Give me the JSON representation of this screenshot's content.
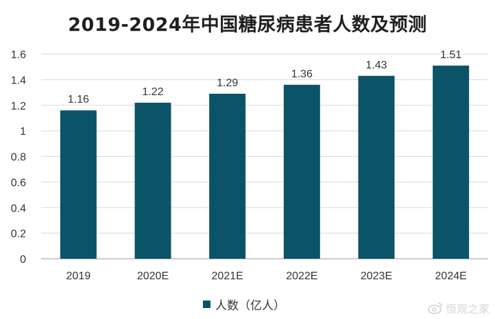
{
  "chart_data": {
    "type": "bar",
    "title": "2019-2024年中国糖尿病患者人数及预测",
    "xlabel": "",
    "ylabel": "",
    "categories": [
      "2019",
      "2020E",
      "2021E",
      "2022E",
      "2023E",
      "2024E"
    ],
    "series": [
      {
        "name": "人数（亿人）",
        "values": [
          1.16,
          1.22,
          1.29,
          1.36,
          1.43,
          1.51
        ],
        "color": "#0b5468"
      }
    ],
    "data_labels": [
      "1.16",
      "1.22",
      "1.29",
      "1.36",
      "1.43",
      "1.51"
    ],
    "ylim": [
      0,
      1.6
    ],
    "yticks": [
      0,
      0.2,
      0.4,
      0.6,
      0.8,
      1,
      1.2,
      1.4,
      1.6
    ],
    "ytick_labels": [
      "0",
      "0.2",
      "0.4",
      "0.6",
      "0.8",
      "1",
      "1.2",
      "1.4",
      "1.6"
    ],
    "grid": true,
    "legend_position": "bottom-center"
  },
  "watermark": {
    "text": "恒观之家",
    "icon": "weibo-icon"
  }
}
